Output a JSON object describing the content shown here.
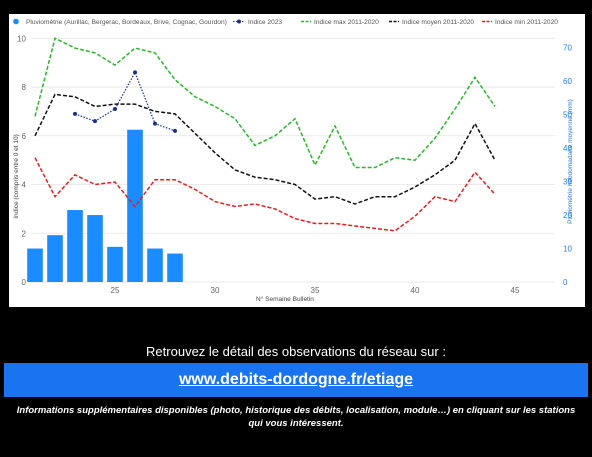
{
  "chart_data": {
    "type": "bar",
    "xlabel": "N° Semaine Bulletin",
    "ylabel": "Indice (compris entre 0 et 10)",
    "ylabel_right": "Pluviométrie hebdomadaire moyenne (mm)",
    "xlim": [
      20.8,
      47
    ],
    "ylim": [
      0,
      10.3
    ],
    "ylim_right": [
      0,
      75.0
    ],
    "x_ticks": [
      25,
      30,
      35,
      40,
      45
    ],
    "y_ticks": [
      0,
      2,
      4,
      6,
      8,
      10
    ],
    "y_ticks_right": [
      0,
      10,
      20,
      30,
      40,
      50,
      60,
      70
    ],
    "grid": true,
    "legend_position": "top",
    "series": [
      {
        "name": "Pluviométrie (Aurillac, Bergerac, Bordeaux, Brive, Cognac, Gourdon)",
        "kind": "bar",
        "axis": "right",
        "color": "#1a8cff",
        "x": [
          21,
          22,
          23,
          24,
          25,
          26,
          27,
          28
        ],
        "values": [
          10,
          14,
          21.5,
          20,
          10.5,
          45.5,
          10,
          8.5
        ]
      },
      {
        "name": "Indice 2023",
        "kind": "line-markers",
        "axis": "left",
        "color": "#1a2f8a",
        "x": [
          23,
          24,
          25,
          26,
          27,
          28
        ],
        "values": [
          6.9,
          6.6,
          7.1,
          8.6,
          6.5,
          6.2
        ]
      },
      {
        "name": "Indice max 2011-2020",
        "kind": "line-dashed",
        "axis": "left",
        "color": "#2bb52b",
        "x": [
          21,
          22,
          23,
          24,
          25,
          26,
          27,
          28,
          29,
          30,
          31,
          32,
          33,
          34,
          35,
          36,
          37,
          38,
          39,
          40,
          41,
          42,
          43,
          44
        ],
        "values": [
          6.8,
          10,
          9.6,
          9.4,
          8.9,
          9.6,
          9.4,
          8.3,
          7.6,
          7.2,
          6.7,
          5.6,
          6.0,
          6.7,
          4.8,
          6.4,
          4.7,
          4.7,
          5.1,
          5.0,
          5.9,
          7.1,
          8.4,
          7.2
        ]
      },
      {
        "name": "Indice moyen 2011-2020",
        "kind": "line-dashed",
        "axis": "left",
        "color": "#111111",
        "x": [
          21,
          22,
          23,
          24,
          25,
          26,
          27,
          28,
          29,
          30,
          31,
          32,
          33,
          34,
          35,
          36,
          37,
          38,
          39,
          40,
          41,
          42,
          43,
          44
        ],
        "values": [
          6.0,
          7.7,
          7.6,
          7.2,
          7.3,
          7.3,
          7.0,
          6.9,
          6.1,
          5.3,
          4.6,
          4.3,
          4.2,
          4.0,
          3.4,
          3.5,
          3.2,
          3.5,
          3.5,
          3.9,
          4.4,
          5.0,
          6.5,
          5.0
        ]
      },
      {
        "name": "Indice min 2011-2020",
        "kind": "line-dashed",
        "axis": "left",
        "color": "#e02020",
        "x": [
          21,
          22,
          23,
          24,
          25,
          26,
          27,
          28,
          29,
          30,
          31,
          32,
          33,
          34,
          35,
          36,
          37,
          38,
          39,
          40,
          41,
          42,
          43,
          44
        ],
        "values": [
          5.1,
          3.5,
          4.4,
          4.0,
          4.1,
          3.1,
          4.2,
          4.2,
          3.8,
          3.3,
          3.1,
          3.2,
          3.0,
          2.6,
          2.4,
          2.4,
          2.3,
          2.2,
          2.1,
          2.7,
          3.5,
          3.3,
          4.5,
          3.6
        ]
      }
    ]
  },
  "info_text": "Retrouvez le détail des observations du réseau sur :",
  "link_text": "www.debits-dordogne.fr/etiage",
  "footer_text": "Informations supplémentaires disponibles (photo, historique des débits, localisation, module…) en cliquant sur les stations qui vous intéressent."
}
